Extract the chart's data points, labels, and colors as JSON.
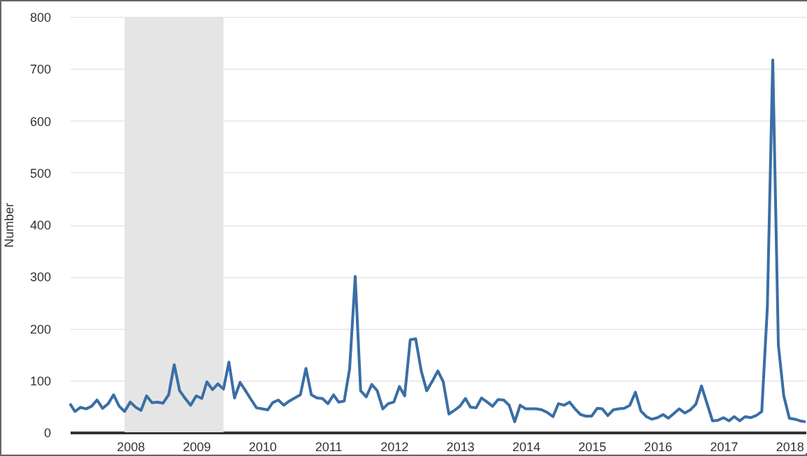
{
  "chart_data": {
    "type": "line",
    "ylabel": "Number",
    "x": [
      "2007-02",
      "2007-03",
      "2007-04",
      "2007-05",
      "2007-06",
      "2007-07",
      "2007-08",
      "2007-09",
      "2007-10",
      "2007-11",
      "2007-12",
      "2008-01",
      "2008-02",
      "2008-03",
      "2008-04",
      "2008-05",
      "2008-06",
      "2008-07",
      "2008-08",
      "2008-09",
      "2008-10",
      "2008-11",
      "2008-12",
      "2009-01",
      "2009-02",
      "2009-03",
      "2009-04",
      "2009-05",
      "2009-06",
      "2009-07",
      "2009-08",
      "2009-09",
      "2009-10",
      "2009-11",
      "2009-12",
      "2010-01",
      "2010-02",
      "2010-03",
      "2010-04",
      "2010-05",
      "2010-06",
      "2010-07",
      "2010-08",
      "2010-09",
      "2010-10",
      "2010-11",
      "2010-12",
      "2011-01",
      "2011-02",
      "2011-03",
      "2011-04",
      "2011-05",
      "2011-06",
      "2011-07",
      "2011-08",
      "2011-09",
      "2011-10",
      "2011-11",
      "2011-12",
      "2012-01",
      "2012-02",
      "2012-03",
      "2012-04",
      "2012-05",
      "2012-06",
      "2012-07",
      "2012-08",
      "2012-09",
      "2012-10",
      "2012-11",
      "2012-12",
      "2013-01",
      "2013-02",
      "2013-03",
      "2013-04",
      "2013-05",
      "2013-06",
      "2013-07",
      "2013-08",
      "2013-09",
      "2013-10",
      "2013-11",
      "2013-12",
      "2014-01",
      "2014-02",
      "2014-03",
      "2014-04",
      "2014-05",
      "2014-06",
      "2014-07",
      "2014-08",
      "2014-09",
      "2014-10",
      "2014-11",
      "2014-12",
      "2015-01",
      "2015-02",
      "2015-03",
      "2015-04",
      "2015-05",
      "2015-06",
      "2015-07",
      "2015-08",
      "2015-09",
      "2015-10",
      "2015-11",
      "2015-12",
      "2016-01",
      "2016-02",
      "2016-03",
      "2016-04",
      "2016-05",
      "2016-06",
      "2016-07",
      "2016-08",
      "2016-09",
      "2016-10",
      "2016-11",
      "2016-12",
      "2017-01",
      "2017-02",
      "2017-03",
      "2017-04",
      "2017-05",
      "2017-06",
      "2017-07",
      "2017-08",
      "2017-09",
      "2017-10",
      "2017-11",
      "2017-12",
      "2018-01",
      "2018-02",
      "2018-03",
      "2018-04"
    ],
    "series": [
      {
        "color": "#3a6ea5",
        "values": [
          55,
          40,
          48,
          45,
          50,
          62,
          46,
          55,
          72,
          50,
          40,
          58,
          48,
          42,
          70,
          57,
          58,
          56,
          72,
          130,
          80,
          65,
          52,
          70,
          65,
          97,
          82,
          93,
          83,
          135,
          66,
          96,
          80,
          63,
          47,
          45,
          43,
          57,
          62,
          52,
          60,
          66,
          72,
          123,
          72,
          66,
          65,
          55,
          72,
          58,
          60,
          122,
          300,
          80,
          68,
          92,
          80,
          45,
          55,
          58,
          88,
          70,
          178,
          180,
          118,
          80,
          98,
          118,
          97,
          35,
          42,
          50,
          65,
          48,
          47,
          66,
          58,
          50,
          63,
          62,
          52,
          20,
          52,
          45,
          45,
          45,
          43,
          38,
          30,
          55,
          52,
          58,
          45,
          34,
          31,
          31,
          46,
          45,
          32,
          43,
          45,
          46,
          52,
          77,
          41,
          30,
          25,
          28,
          34,
          27,
          36,
          45,
          37,
          43,
          54,
          89,
          56,
          22,
          23,
          28,
          22,
          30,
          22,
          30,
          28,
          32,
          40,
          240,
          717,
          168,
          70,
          27,
          25,
          22,
          20
        ]
      }
    ],
    "xlim": [
      "2007-02",
      "2018-04"
    ],
    "xticks": [
      {
        "value": "2008",
        "label": "2008"
      },
      {
        "value": "2009",
        "label": "2009"
      },
      {
        "value": "2010",
        "label": "2010"
      },
      {
        "value": "2011",
        "label": "2011"
      },
      {
        "value": "2012",
        "label": "2012"
      },
      {
        "value": "2013",
        "label": "2013"
      },
      {
        "value": "2014",
        "label": "2014"
      },
      {
        "value": "2015",
        "label": "2015"
      },
      {
        "value": "2016",
        "label": "2016"
      },
      {
        "value": "2017",
        "label": "2017"
      },
      {
        "value": "2018",
        "label": "2018"
      }
    ],
    "ylim": [
      0,
      800
    ],
    "yticks": [
      0,
      100,
      200,
      300,
      400,
      500,
      600,
      700,
      800
    ],
    "bands": [
      {
        "axis": "x",
        "from": "2007-12",
        "to": "2009-06",
        "color": "#e5e5e5"
      }
    ],
    "grid": "y",
    "marker": "none",
    "line_style": "solid",
    "legend": false
  }
}
